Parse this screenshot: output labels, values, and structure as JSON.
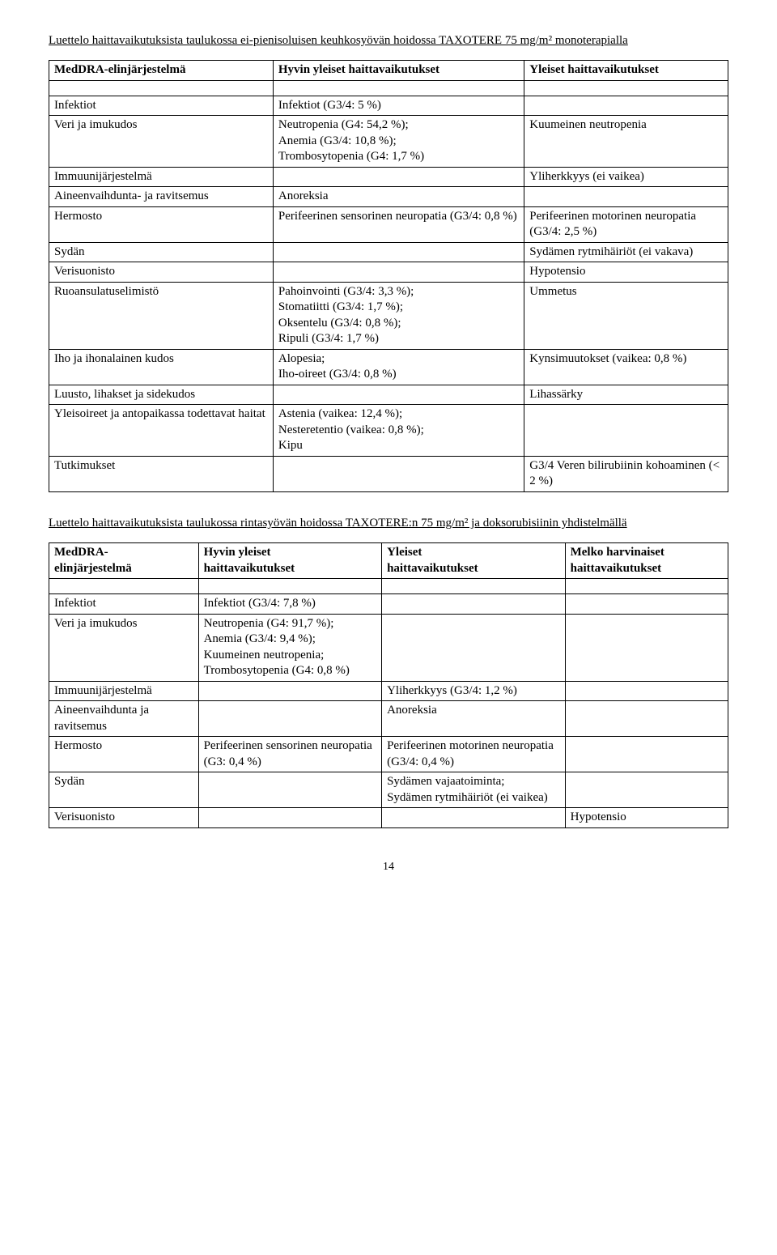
{
  "section1": {
    "title": "Luettelo haittavaikutuksista taulukossa ei-pienisoluisen keuhkosyövän hoidossa TAXOTERE 75 mg/m² monoterapialla",
    "headers": {
      "c1": "MedDRA-elinjärjestelmä",
      "c2": "Hyvin yleiset haittavaikutukset",
      "c3": "Yleiset haittavaikutukset"
    },
    "rows": {
      "r0": {
        "c1": "Infektiot",
        "c2": "Infektiot (G3/4: 5 %)",
        "c3": ""
      },
      "r1": {
        "c1": "Veri ja imukudos",
        "c2": "Neutropenia (G4: 54,2 %);\nAnemia (G3/4: 10,8 %);\nTrombosytopenia (G4: 1,7 %)",
        "c3": "Kuumeinen neutropenia"
      },
      "r2": {
        "c1": "Immuunijärjestelmä",
        "c2": "",
        "c3": "Yliherkkyys (ei vaikea)"
      },
      "r3": {
        "c1": "Aineenvaihdunta- ja ravitsemus",
        "c2": "Anoreksia",
        "c3": ""
      },
      "r4": {
        "c1": "Hermosto",
        "c2": "Perifeerinen sensorinen neuropatia (G3/4: 0,8 %)",
        "c3": "Perifeerinen motorinen neuropatia (G3/4: 2,5 %)"
      },
      "r5": {
        "c1": "Sydän",
        "c2": "",
        "c3": "Sydämen rytmihäiriöt (ei vakava)"
      },
      "r6": {
        "c1": "Verisuonisto",
        "c2": "",
        "c3": "Hypotensio"
      },
      "r7": {
        "c1": "Ruoansulatuselimistö",
        "c2": "Pahoinvointi (G3/4: 3,3 %);\nStomatiitti (G3/4: 1,7 %);\nOksentelu (G3/4: 0,8 %);\nRipuli (G3/4: 1,7 %)",
        "c3": "Ummetus"
      },
      "r8": {
        "c1": "Iho ja ihonalainen kudos",
        "c2": "Alopesia;\nIho-oireet (G3/4: 0,8 %)",
        "c3": "Kynsimuutokset (vaikea: 0,8 %)"
      },
      "r9": {
        "c1": "Luusto, lihakset ja sidekudos",
        "c2": "",
        "c3": "Lihassärky"
      },
      "r10": {
        "c1": "Yleisoireet ja antopaikassa todettavat haitat",
        "c2": "Astenia (vaikea: 12,4 %);\nNesteretentio (vaikea: 0,8 %);\nKipu",
        "c3": ""
      },
      "r11": {
        "c1": "Tutkimukset",
        "c2": "",
        "c3": "G3/4 Veren bilirubiinin kohoaminen (< 2 %)"
      }
    }
  },
  "section2": {
    "title": "Luettelo haittavaikutuksista taulukossa rintasyövän hoidossa TAXOTERE:n 75 mg/m² ja doksorubisiinin yhdistelmällä",
    "headers": {
      "c1": "MedDRA-\nelinjärjestelmä",
      "c2": "Hyvin yleiset\nhaittavaikutukset",
      "c3": "Yleiset\nhaittavaikutukset",
      "c4": "Melko harvinaiset\nhaittavaikutukset"
    },
    "rows": {
      "r0": {
        "c1": "Infektiot",
        "c2": "Infektiot (G3/4: 7,8 %)",
        "c3": "",
        "c4": ""
      },
      "r1": {
        "c1": "Veri ja imukudos",
        "c2": "Neutropenia (G4: 91,7 %);\nAnemia (G3/4: 9,4 %);\nKuumeinen neutropenia;\nTrombosytopenia (G4: 0,8 %)",
        "c3": "",
        "c4": ""
      },
      "r2": {
        "c1": "Immuunijärjestelmä",
        "c2": "",
        "c3": "Yliherkkyys (G3/4: 1,2 %)",
        "c4": ""
      },
      "r3": {
        "c1": "Aineenvaihdunta ja ravitsemus",
        "c2": "",
        "c3": "Anoreksia",
        "c4": ""
      },
      "r4": {
        "c1": "Hermosto",
        "c2": "Perifeerinen sensorinen neuropatia (G3: 0,4 %)",
        "c3": "Perifeerinen motorinen neuropatia (G3/4: 0,4 %)",
        "c4": ""
      },
      "r5": {
        "c1": "Sydän",
        "c2": "",
        "c3": "Sydämen vajaatoiminta;\nSydämen rytmihäiriöt (ei vaikea)",
        "c4": ""
      },
      "r6": {
        "c1": "Verisuonisto",
        "c2": "",
        "c3": "",
        "c4": "Hypotensio"
      }
    }
  },
  "pageNumber": "14"
}
